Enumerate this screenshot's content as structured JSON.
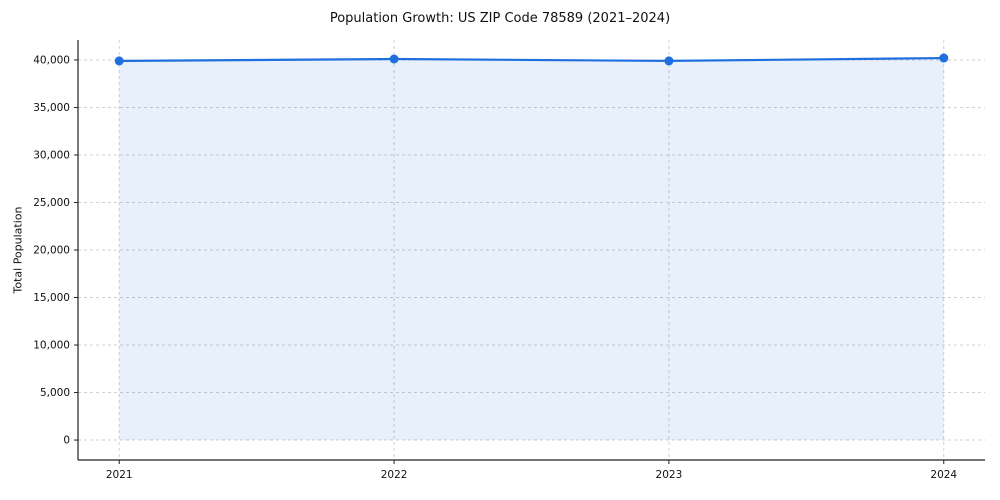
{
  "chart_data": {
    "type": "line",
    "title": "Population Growth: US ZIP Code 78589 (2021–2024)",
    "xlabel": "",
    "ylabel": "Total Population",
    "x": [
      2021,
      2022,
      2023,
      2024
    ],
    "xtick_labels": [
      "2021",
      "2022",
      "2023",
      "2024"
    ],
    "yticks": [
      0,
      5000,
      10000,
      15000,
      20000,
      25000,
      30000,
      35000,
      40000
    ],
    "ytick_labels": [
      "0",
      "5,000",
      "10,000",
      "15,000",
      "20,000",
      "25,000",
      "30,000",
      "35,000",
      "40,000"
    ],
    "series": [
      {
        "name": "Total Population",
        "values": [
          39900,
          40100,
          39900,
          40200
        ]
      }
    ],
    "ylim": [
      -2100,
      42100
    ],
    "xlim": [
      2020.85,
      2024.15
    ],
    "grid": true,
    "grid_style": "dashed",
    "legend_position": "none",
    "line_color": "#1f6fde",
    "fill_color": "rgba(31,111,222,0.10)",
    "grid_color": "#d0d0d0",
    "axis_color": "#222222",
    "text_color": "#111111",
    "marker": "circle",
    "fill_to": 0
  }
}
